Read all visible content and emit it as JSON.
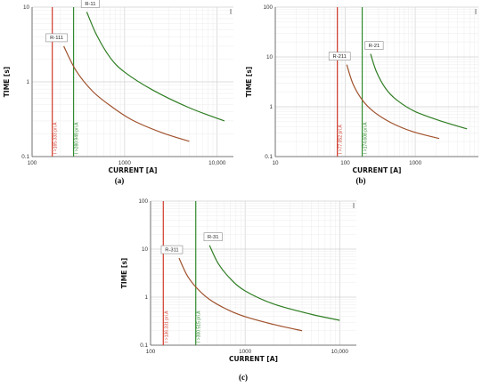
{
  "chart_data": [
    {
      "type": "line",
      "caption": "(a)",
      "title": "",
      "xlabel": "CURRENT [A]",
      "ylabel": "TIME [s]",
      "xscale": "log",
      "yscale": "log",
      "xlim": [
        100,
        15000
      ],
      "ylim": [
        0.1,
        10
      ],
      "grid": true,
      "xticks": [
        {
          "v": 100,
          "t": "100"
        },
        {
          "v": 1000,
          "t": "1000"
        },
        {
          "v": 10000,
          "t": "10,000"
        }
      ],
      "yticks": [
        {
          "v": 0.1,
          "t": "0.1"
        },
        {
          "v": 1,
          "t": "1"
        },
        {
          "v": 10,
          "t": "10"
        }
      ],
      "vlines": [
        {
          "x": 165.333,
          "label": "I >165.333 pri.A",
          "color": "#d13a2a"
        },
        {
          "x": 280.949,
          "label": "I >280.949 pri.A",
          "color": "#2e8b2e"
        }
      ],
      "series": [
        {
          "name": "R-111",
          "color": "#a0522d",
          "x": [
            220,
            300,
            450,
            700,
            1200,
            2500,
            5000
          ],
          "y": [
            3.0,
            1.4,
            0.75,
            0.48,
            0.31,
            0.21,
            0.16
          ]
        },
        {
          "name": "R-11",
          "color": "#2e7d22",
          "x": [
            390,
            500,
            700,
            1000,
            2000,
            5000,
            12000
          ],
          "y": [
            8.6,
            4.2,
            2.1,
            1.35,
            0.78,
            0.45,
            0.3
          ]
        }
      ]
    },
    {
      "type": "line",
      "caption": "(b)",
      "title": "",
      "xlabel": "CURRENT [A]",
      "ylabel": "TIME [s]",
      "xscale": "log",
      "yscale": "log",
      "xlim": [
        10,
        8000
      ],
      "ylim": [
        0.1,
        100
      ],
      "grid": true,
      "xticks": [
        {
          "v": 10,
          "t": "10"
        },
        {
          "v": 100,
          "t": "100"
        },
        {
          "v": 1000,
          "t": "1000"
        }
      ],
      "yticks": [
        {
          "v": 0.1,
          "t": "0.1"
        },
        {
          "v": 1,
          "t": "1"
        },
        {
          "v": 10,
          "t": "10"
        },
        {
          "v": 100,
          "t": "100"
        }
      ],
      "vlines": [
        {
          "x": 77.052,
          "label": "I >77.052 pri.A",
          "color": "#d13a2a"
        },
        {
          "x": 174.608,
          "label": "I >174.608 pri.A",
          "color": "#2e8b2e"
        }
      ],
      "series": [
        {
          "name": "R-211",
          "color": "#a0522d",
          "x": [
            105,
            130,
            180,
            260,
            450,
            900,
            2200
          ],
          "y": [
            7.0,
            2.8,
            1.3,
            0.78,
            0.48,
            0.32,
            0.23
          ]
        },
        {
          "name": "R-21",
          "color": "#2e7d22",
          "x": [
            230,
            280,
            380,
            550,
            1000,
            2500,
            5500
          ],
          "y": [
            11.5,
            5.0,
            2.3,
            1.35,
            0.8,
            0.5,
            0.36
          ]
        }
      ]
    },
    {
      "type": "line",
      "caption": "(c)",
      "title": "",
      "xlabel": "CURRENT [A]",
      "ylabel": "TIME [s]",
      "xscale": "log",
      "yscale": "log",
      "xlim": [
        100,
        15000
      ],
      "ylim": [
        0.1,
        100
      ],
      "grid": true,
      "xticks": [
        {
          "v": 100,
          "t": "100"
        },
        {
          "v": 1000,
          "t": "1000"
        },
        {
          "v": 10000,
          "t": "10,000"
        }
      ],
      "yticks": [
        {
          "v": 0.1,
          "t": "0.1"
        },
        {
          "v": 1,
          "t": "1"
        },
        {
          "v": 10,
          "t": "10"
        },
        {
          "v": 100,
          "t": "100"
        }
      ],
      "vlines": [
        {
          "x": 136.331,
          "label": "I >136.331 pri.A",
          "color": "#d13a2a"
        },
        {
          "x": 300.515,
          "label": "I >300.515 pri.A",
          "color": "#2e8b2e"
        }
      ],
      "series": [
        {
          "name": "R-311",
          "color": "#a0522d",
          "x": [
            200,
            250,
            350,
            500,
            900,
            2000,
            4000
          ],
          "y": [
            6.5,
            2.6,
            1.2,
            0.72,
            0.42,
            0.27,
            0.2
          ]
        },
        {
          "name": "R-31",
          "color": "#2e7d22",
          "x": [
            420,
            520,
            700,
            1000,
            2000,
            5000,
            10000
          ],
          "y": [
            12.0,
            5.0,
            2.4,
            1.35,
            0.72,
            0.44,
            0.33
          ]
        }
      ]
    }
  ]
}
